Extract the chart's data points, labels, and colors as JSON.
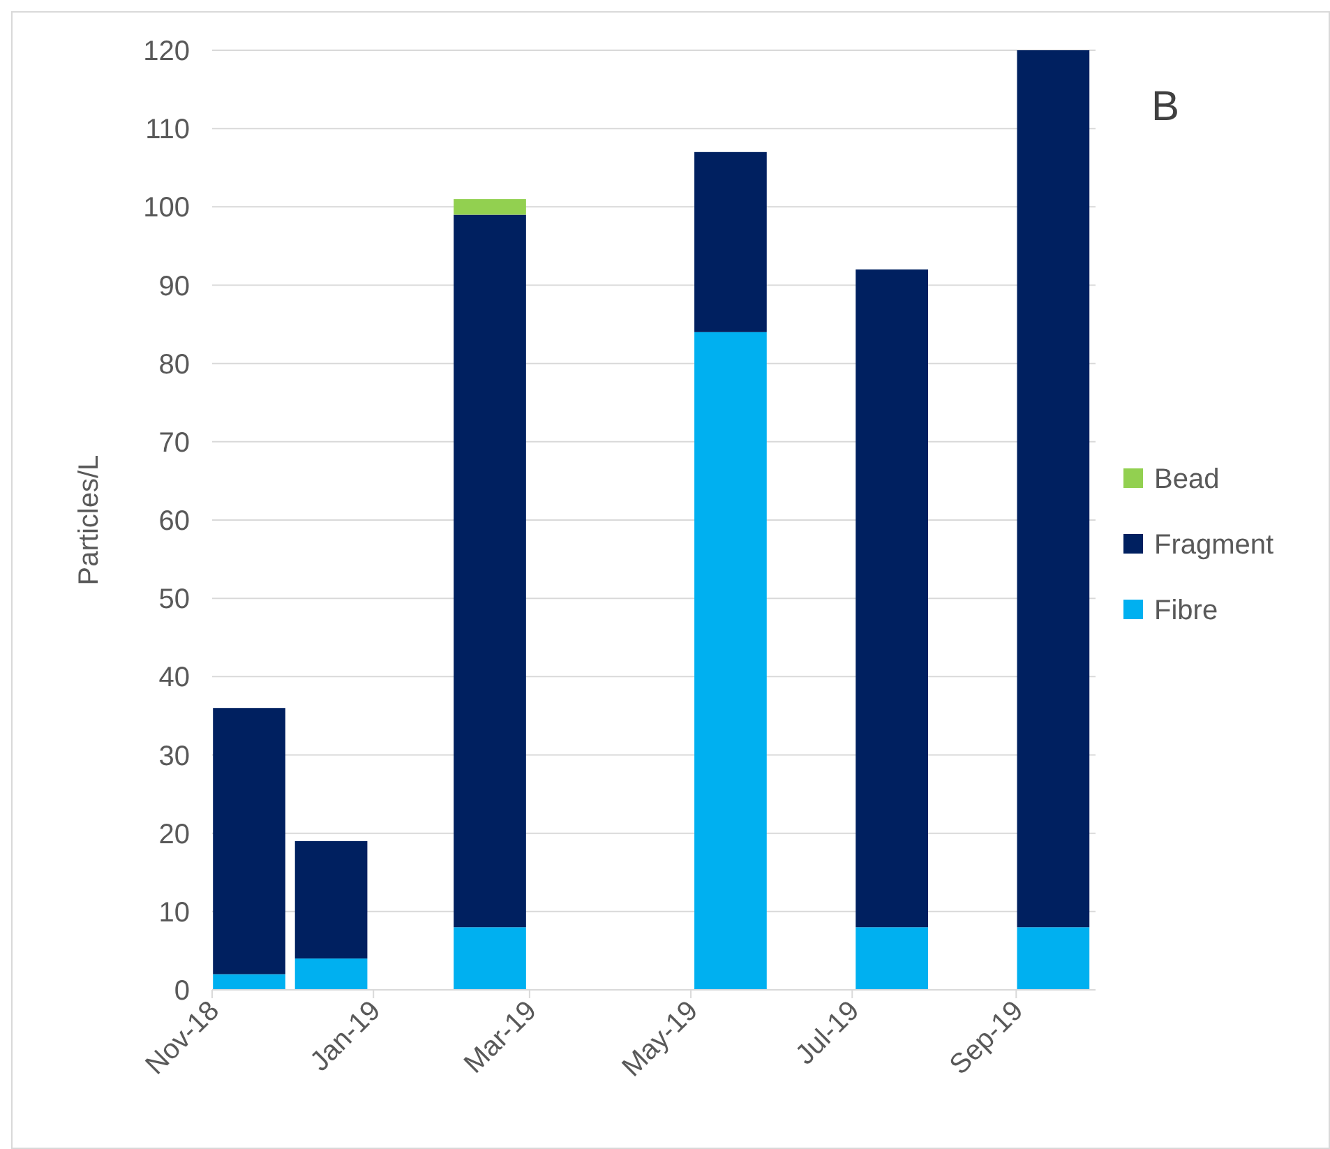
{
  "chart_data": {
    "type": "bar",
    "title": "B",
    "ylabel": "Particles/L",
    "stacked": true,
    "x": [
      "2018-11-15",
      "2018-12-16",
      "2019-02-14",
      "2019-05-16",
      "2019-07-16",
      "2019-09-15"
    ],
    "series": [
      {
        "name": "Fibre",
        "color": "#00b0f0",
        "values": [
          2,
          4,
          8,
          84,
          8,
          8
        ]
      },
      {
        "name": "Fragment",
        "color": "#002060",
        "values": [
          34,
          15,
          91,
          23,
          84,
          112
        ]
      },
      {
        "name": "Bead",
        "color": "#92d050",
        "values": [
          null,
          null,
          2,
          null,
          null,
          null
        ]
      }
    ],
    "xlim": [
      "2018-11",
      "2019-10"
    ],
    "xticks": [
      {
        "value": "2018-11",
        "label": "Nov-18"
      },
      {
        "value": "2019-01",
        "label": "Jan-19"
      },
      {
        "value": "2019-03",
        "label": "Mar-19"
      },
      {
        "value": "2019-05",
        "label": "May-19"
      },
      {
        "value": "2019-07",
        "label": "Jul-19"
      },
      {
        "value": "2019-09",
        "label": "Sep-19"
      }
    ],
    "ylim": [
      0,
      120
    ],
    "yticks": [
      0,
      10,
      20,
      30,
      40,
      50,
      60,
      70,
      80,
      90,
      100,
      110,
      120
    ],
    "grid": "y",
    "legend": "right"
  }
}
